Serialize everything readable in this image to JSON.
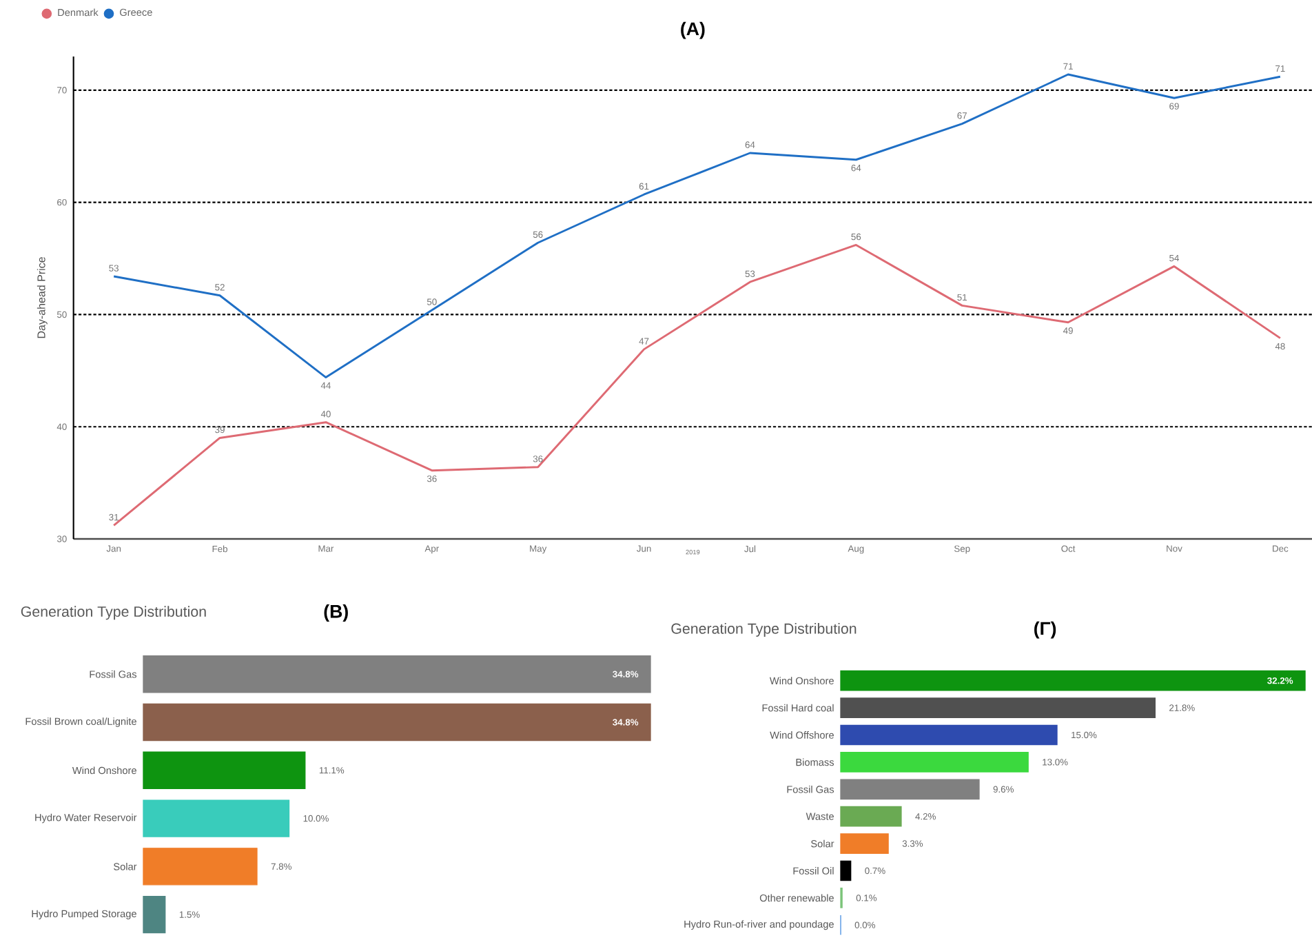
{
  "chart_data": [
    {
      "type": "line",
      "title": "(A)",
      "xlabel": "2019",
      "ylabel": "Day-ahead Price",
      "categories": [
        "Jan",
        "Feb",
        "Mar",
        "Apr",
        "May",
        "Jun",
        "Jul",
        "Aug",
        "Sep",
        "Oct",
        "Nov",
        "Dec"
      ],
      "series": [
        {
          "name": "Denmark",
          "color": "#de6a73",
          "values": [
            31.2,
            39.0,
            40.4,
            36.1,
            36.4,
            46.9,
            52.9,
            56.2,
            50.8,
            49.3,
            54.3,
            47.9
          ],
          "value_labels": [
            "31",
            "39",
            "40",
            "36",
            "36",
            "47",
            "53",
            "56",
            "51",
            "49",
            "54",
            "48"
          ]
        },
        {
          "name": "Greece",
          "color": "#1f6fc5",
          "values": [
            53.4,
            51.7,
            44.4,
            50.4,
            56.4,
            60.7,
            64.4,
            63.8,
            67.0,
            71.4,
            69.3,
            71.2
          ],
          "value_labels": [
            "53",
            "52",
            "44",
            "50",
            "56",
            "61",
            "64",
            "64",
            "67",
            "71",
            "69",
            "71"
          ]
        }
      ],
      "ylim": [
        30,
        73
      ],
      "yticks": [
        30,
        40,
        50,
        60,
        70
      ],
      "grid": "y",
      "legend": "top left"
    },
    {
      "type": "bar",
      "orientation": "horizontal",
      "title": "(B)",
      "subtitle": "Generation Type Distribution",
      "categories": [
        "Fossil Gas",
        "Fossil Brown coal/Lignite",
        "Wind Onshore",
        "Hydro Water Reservoir",
        "Solar",
        "Hydro Pumped Storage"
      ],
      "values": [
        34.8,
        34.8,
        11.1,
        10.0,
        7.8,
        1.5
      ],
      "colors": [
        "#808080",
        "#8b604c",
        "#0e9410",
        "#39ccbb",
        "#f07d28",
        "#4e8582"
      ],
      "value_labels": [
        "34.8%",
        "34.8%",
        "11.1%",
        "10.0%",
        "7.8%",
        "1.5%"
      ]
    },
    {
      "type": "bar",
      "orientation": "horizontal",
      "title": "(Γ)",
      "subtitle": "Generation Type Distribution",
      "categories": [
        "Wind Onshore",
        "Fossil Hard coal",
        "Wind Offshore",
        "Biomass",
        "Fossil Gas",
        "Waste",
        "Solar",
        "Fossil Oil",
        "Other renewable",
        "Hydro Run-of-river and poundage"
      ],
      "values": [
        32.2,
        21.8,
        15.0,
        13.0,
        9.6,
        4.2,
        3.3,
        0.7,
        0.1,
        0.0
      ],
      "colors": [
        "#0e9410",
        "#505050",
        "#2e4baf",
        "#3bd93e",
        "#808080",
        "#6aaa53",
        "#f07d28",
        "#000000",
        "#7cc47a",
        "#4a90e2"
      ],
      "value_labels": [
        "32.2%",
        "21.8%",
        "15.0%",
        "13.0%",
        "9.6%",
        "4.2%",
        "3.3%",
        "0.7%",
        "0.1%",
        "0.0%"
      ]
    }
  ]
}
